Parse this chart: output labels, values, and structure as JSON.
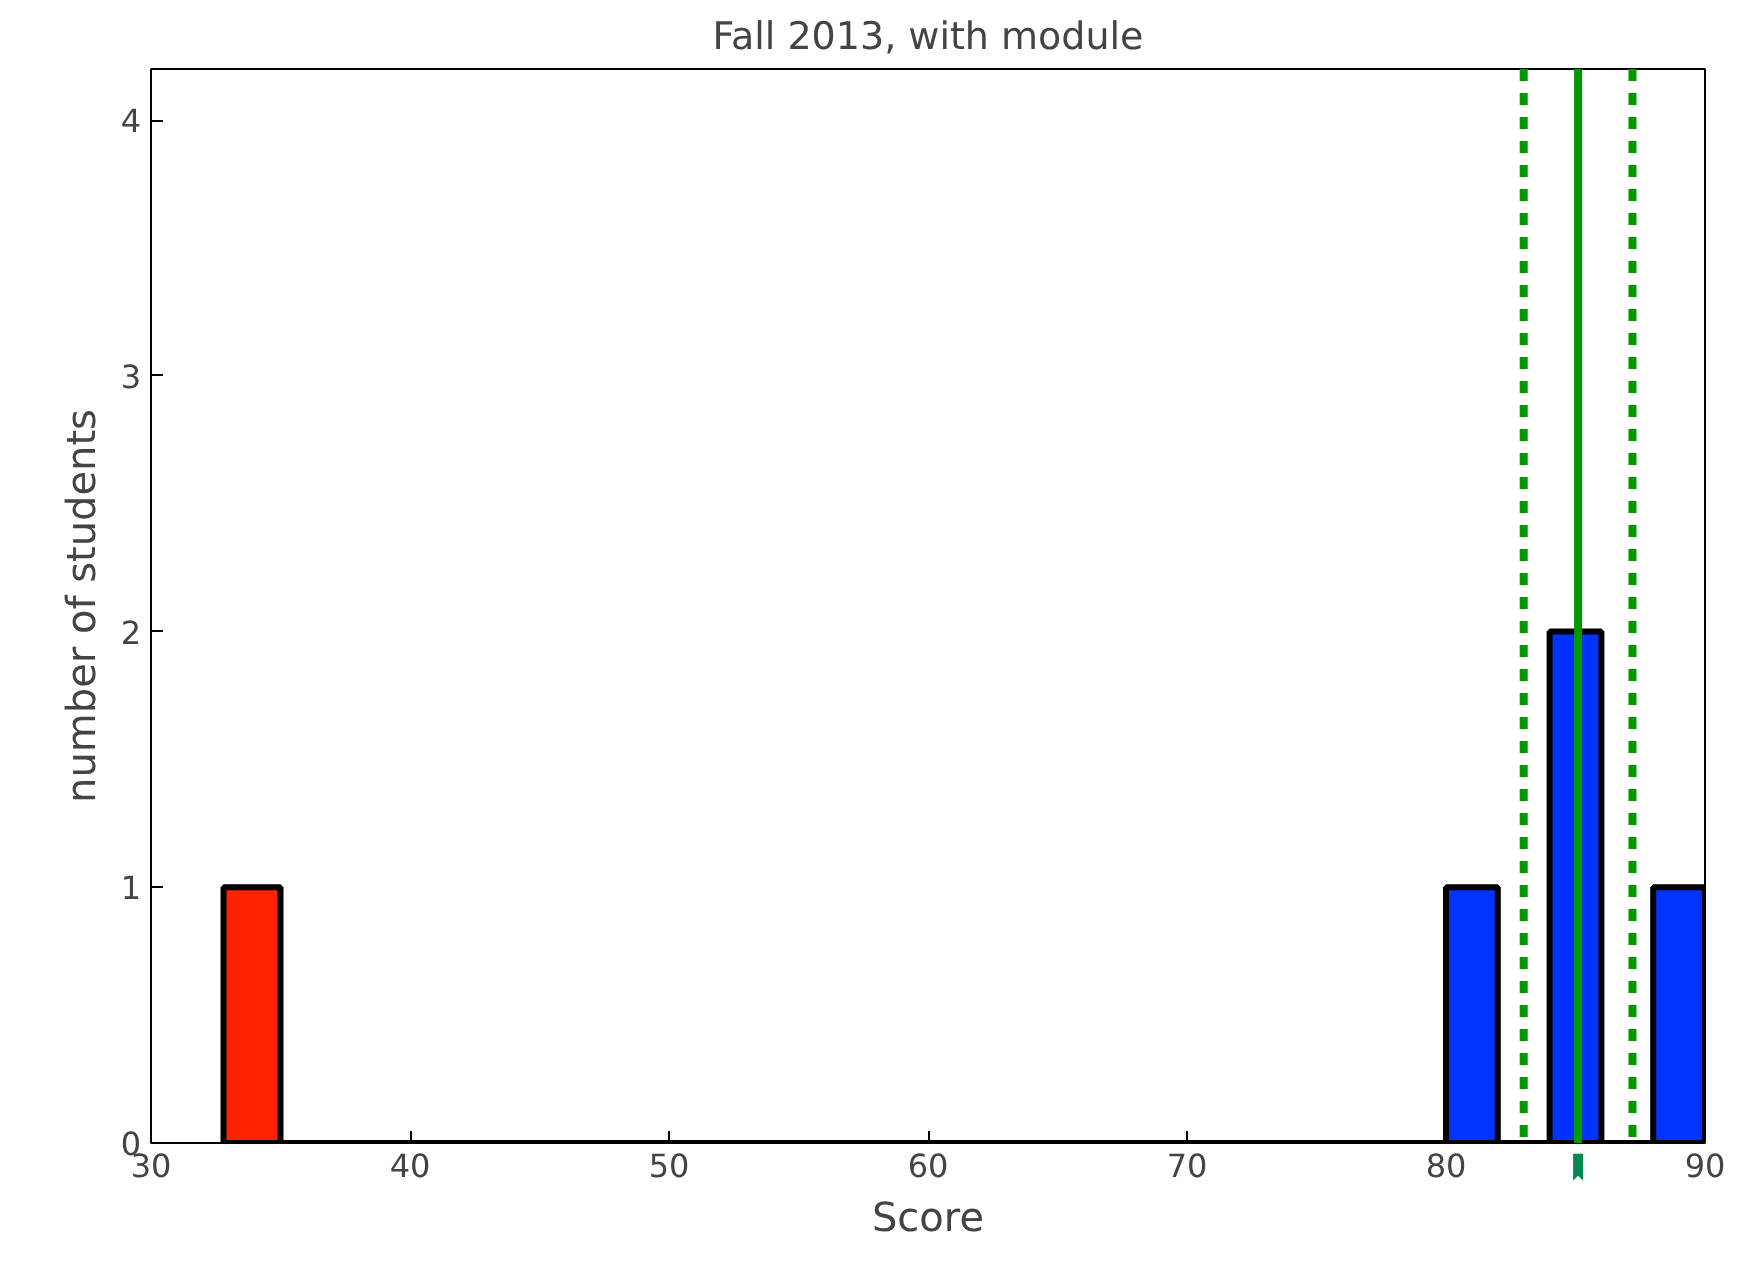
{
  "chart_data": {
    "type": "histogram",
    "title": "Fall 2013, with module",
    "xlabel": "Score",
    "ylabel": "number of students",
    "bins": [
      32.8,
      35,
      80,
      82,
      84,
      86,
      88,
      90
    ],
    "values": [
      1,
      0,
      1,
      0,
      2,
      0,
      1
    ],
    "colors": [
      "#ff2200",
      "#0033ff",
      "#0033ff",
      "#0033ff",
      "#0033ff",
      "#0033ff",
      "#0033ff"
    ],
    "xlim": [
      30,
      90
    ],
    "xticks": [
      30,
      40,
      50,
      60,
      70,
      80,
      90
    ],
    "ylim": [
      0,
      4.2
    ],
    "yticks": [
      0,
      1,
      2,
      3,
      4
    ],
    "grid": false,
    "ref_lines": [
      {
        "axis": "x",
        "value": 85.1,
        "color": "#009900",
        "line_style": "solid"
      },
      {
        "axis": "x",
        "value": 83,
        "color": "#009900",
        "line_style": "dashed"
      },
      {
        "axis": "x",
        "value": 87.2,
        "color": "#009900",
        "line_style": "dashed"
      }
    ]
  }
}
